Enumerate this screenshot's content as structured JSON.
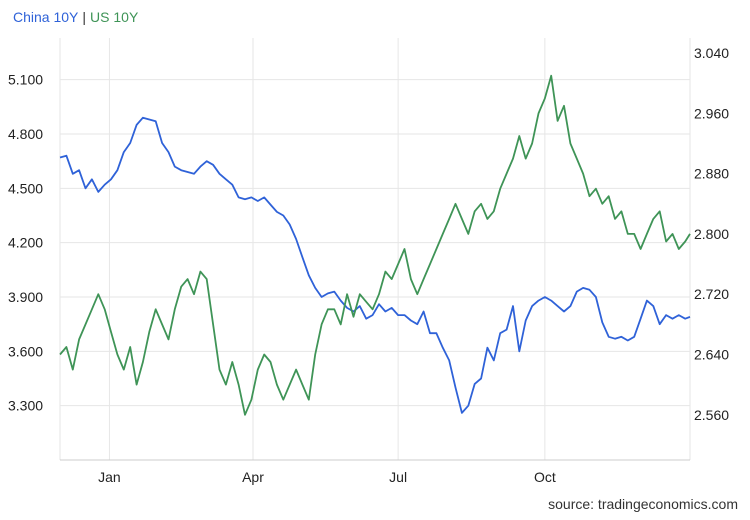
{
  "source_text": "source: tradingeconomics.com",
  "colors": {
    "china": "#2f62d8",
    "us": "#3f9457",
    "grid": "#e6e6e6",
    "axis": "#cccccc"
  },
  "chart_data": {
    "type": "line",
    "title": "",
    "x_ticks": [
      "Jan",
      "Apr",
      "Jul",
      "Oct"
    ],
    "x_tick_dates": [
      "2019-01-01",
      "2019-04-01",
      "2019-07-01",
      "2019-10-01"
    ],
    "x_range": [
      "2018-12-01",
      "2019-12-31"
    ],
    "grid": true,
    "legend_position": "top-left",
    "y_left": {
      "range": [
        3.0,
        5.33
      ],
      "ticks": [
        "3.300",
        "3.600",
        "3.900",
        "4.200",
        "4.500",
        "4.800",
        "5.100"
      ]
    },
    "y_right": {
      "range": [
        2.5,
        3.06
      ],
      "ticks": [
        "2.560",
        "2.640",
        "2.720",
        "2.800",
        "2.880",
        "2.960",
        "3.040"
      ]
    },
    "series": [
      {
        "name": "China 10Y",
        "axis": "left",
        "x": [
          "2018-12-01",
          "2018-12-05",
          "2018-12-09",
          "2018-12-13",
          "2018-12-17",
          "2018-12-21",
          "2018-12-25",
          "2018-12-29",
          "2019-01-02",
          "2019-01-06",
          "2019-01-10",
          "2019-01-14",
          "2019-01-18",
          "2019-01-22",
          "2019-01-26",
          "2019-01-30",
          "2019-02-03",
          "2019-02-07",
          "2019-02-11",
          "2019-02-15",
          "2019-02-19",
          "2019-02-23",
          "2019-02-27",
          "2019-03-03",
          "2019-03-07",
          "2019-03-11",
          "2019-03-15",
          "2019-03-19",
          "2019-03-23",
          "2019-03-27",
          "2019-03-31",
          "2019-04-04",
          "2019-04-08",
          "2019-04-12",
          "2019-04-16",
          "2019-04-20",
          "2019-04-24",
          "2019-04-28",
          "2019-05-02",
          "2019-05-06",
          "2019-05-10",
          "2019-05-14",
          "2019-05-18",
          "2019-05-22",
          "2019-05-26",
          "2019-05-30",
          "2019-06-03",
          "2019-06-07",
          "2019-06-11",
          "2019-06-15",
          "2019-06-19",
          "2019-06-23",
          "2019-06-27",
          "2019-07-01",
          "2019-07-05",
          "2019-07-09",
          "2019-07-13",
          "2019-07-17",
          "2019-07-21",
          "2019-07-25",
          "2019-07-29",
          "2019-08-02",
          "2019-08-06",
          "2019-08-10",
          "2019-08-14",
          "2019-08-18",
          "2019-08-22",
          "2019-08-26",
          "2019-08-30",
          "2019-09-03",
          "2019-09-07",
          "2019-09-11",
          "2019-09-15",
          "2019-09-19",
          "2019-09-23",
          "2019-09-27",
          "2019-10-01",
          "2019-10-05",
          "2019-10-09",
          "2019-10-13",
          "2019-10-17",
          "2019-10-21",
          "2019-10-25",
          "2019-10-29",
          "2019-11-02",
          "2019-11-06",
          "2019-11-10",
          "2019-11-14",
          "2019-11-18",
          "2019-11-22",
          "2019-11-26",
          "2019-11-30",
          "2019-12-04",
          "2019-12-08",
          "2019-12-12",
          "2019-12-16",
          "2019-12-20",
          "2019-12-24",
          "2019-12-28",
          "2019-12-31"
        ],
        "values": [
          4.67,
          4.68,
          4.58,
          4.6,
          4.5,
          4.55,
          4.48,
          4.52,
          4.55,
          4.6,
          4.7,
          4.75,
          4.85,
          4.89,
          4.88,
          4.87,
          4.75,
          4.7,
          4.62,
          4.6,
          4.59,
          4.58,
          4.62,
          4.65,
          4.63,
          4.58,
          4.55,
          4.52,
          4.45,
          4.44,
          4.45,
          4.43,
          4.45,
          4.41,
          4.37,
          4.35,
          4.3,
          4.22,
          4.12,
          4.02,
          3.95,
          3.9,
          3.92,
          3.93,
          3.88,
          3.84,
          3.82,
          3.85,
          3.78,
          3.8,
          3.86,
          3.82,
          3.84,
          3.8,
          3.8,
          3.77,
          3.75,
          3.82,
          3.7,
          3.7,
          3.62,
          3.55,
          3.4,
          3.26,
          3.3,
          3.42,
          3.45,
          3.62,
          3.55,
          3.7,
          3.72,
          3.85,
          3.6,
          3.77,
          3.85,
          3.88,
          3.9,
          3.88,
          3.85,
          3.82,
          3.85,
          3.93,
          3.95,
          3.94,
          3.9,
          3.76,
          3.68,
          3.67,
          3.68,
          3.66,
          3.68,
          3.78,
          3.88,
          3.85,
          3.75,
          3.8,
          3.78,
          3.8,
          3.78,
          3.79
        ]
      },
      {
        "name": "US 10Y",
        "axis": "right",
        "x": [
          "2018-12-01",
          "2018-12-05",
          "2018-12-09",
          "2018-12-13",
          "2018-12-17",
          "2018-12-21",
          "2018-12-25",
          "2018-12-29",
          "2019-01-02",
          "2019-01-06",
          "2019-01-10",
          "2019-01-14",
          "2019-01-18",
          "2019-01-22",
          "2019-01-26",
          "2019-01-30",
          "2019-02-03",
          "2019-02-07",
          "2019-02-11",
          "2019-02-15",
          "2019-02-19",
          "2019-02-23",
          "2019-02-27",
          "2019-03-03",
          "2019-03-07",
          "2019-03-11",
          "2019-03-15",
          "2019-03-19",
          "2019-03-23",
          "2019-03-27",
          "2019-03-31",
          "2019-04-04",
          "2019-04-08",
          "2019-04-12",
          "2019-04-16",
          "2019-04-20",
          "2019-04-24",
          "2019-04-28",
          "2019-05-02",
          "2019-05-06",
          "2019-05-10",
          "2019-05-14",
          "2019-05-18",
          "2019-05-22",
          "2019-05-26",
          "2019-05-30",
          "2019-06-03",
          "2019-06-07",
          "2019-06-11",
          "2019-06-15",
          "2019-06-19",
          "2019-06-23",
          "2019-06-27",
          "2019-07-01",
          "2019-07-05",
          "2019-07-09",
          "2019-07-13",
          "2019-07-17",
          "2019-07-21",
          "2019-07-25",
          "2019-07-29",
          "2019-08-02",
          "2019-08-06",
          "2019-08-10",
          "2019-08-14",
          "2019-08-18",
          "2019-08-22",
          "2019-08-26",
          "2019-08-30",
          "2019-09-03",
          "2019-09-07",
          "2019-09-11",
          "2019-09-15",
          "2019-09-19",
          "2019-09-23",
          "2019-09-27",
          "2019-10-01",
          "2019-10-05",
          "2019-10-09",
          "2019-10-13",
          "2019-10-17",
          "2019-10-21",
          "2019-10-25",
          "2019-10-29",
          "2019-11-02",
          "2019-11-06",
          "2019-11-10",
          "2019-11-14",
          "2019-11-18",
          "2019-11-22",
          "2019-11-26",
          "2019-11-30",
          "2019-12-04",
          "2019-12-08",
          "2019-12-12",
          "2019-12-16",
          "2019-12-20",
          "2019-12-24",
          "2019-12-28",
          "2019-12-31"
        ],
        "values": [
          2.64,
          2.65,
          2.62,
          2.66,
          2.68,
          2.7,
          2.72,
          2.7,
          2.67,
          2.64,
          2.62,
          2.65,
          2.6,
          2.63,
          2.67,
          2.7,
          2.68,
          2.66,
          2.7,
          2.73,
          2.74,
          2.72,
          2.75,
          2.74,
          2.68,
          2.62,
          2.6,
          2.63,
          2.6,
          2.56,
          2.58,
          2.62,
          2.64,
          2.63,
          2.6,
          2.58,
          2.6,
          2.62,
          2.6,
          2.58,
          2.64,
          2.68,
          2.7,
          2.7,
          2.68,
          2.72,
          2.69,
          2.72,
          2.71,
          2.7,
          2.72,
          2.75,
          2.74,
          2.76,
          2.78,
          2.74,
          2.72,
          2.74,
          2.76,
          2.78,
          2.8,
          2.82,
          2.84,
          2.82,
          2.8,
          2.83,
          2.84,
          2.82,
          2.83,
          2.86,
          2.88,
          2.9,
          2.93,
          2.9,
          2.92,
          2.96,
          2.98,
          3.01,
          2.95,
          2.97,
          2.92,
          2.9,
          2.88,
          2.85,
          2.86,
          2.84,
          2.85,
          2.82,
          2.83,
          2.8,
          2.8,
          2.78,
          2.8,
          2.82,
          2.83,
          2.79,
          2.8,
          2.78,
          2.79,
          2.8
        ]
      }
    ]
  }
}
